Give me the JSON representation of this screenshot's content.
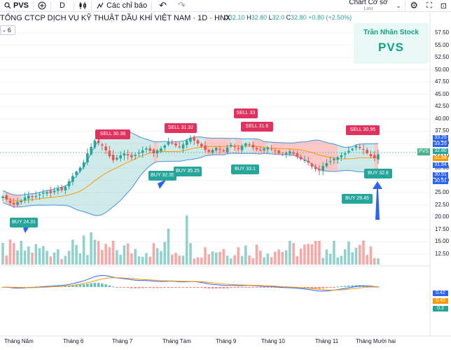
{
  "toolbar": {
    "symbol": "PVS",
    "interval": "D",
    "indicators_label": "Các chỉ báo",
    "chart_type_label": "Chart Cơ sở",
    "save_label": "Lưu"
  },
  "header": {
    "title": "TỔNG CTCP DỊCH VỤ KỸ THUẬT DẦU KHÍ VIỆT NAM · 1D · HNX",
    "open_label": "O",
    "open": "32.10",
    "high_label": "H",
    "high": "32.80",
    "low_label": "L",
    "low": "32.0",
    "close_label": "C",
    "close": "32.80",
    "change": "+0.80 (+2.50%)",
    "volume_count": "6"
  },
  "watermark": {
    "author": "Trần Nhân Stock",
    "symbol": "PVS"
  },
  "colors": {
    "up": "#26a69a",
    "down": "#ef5350",
    "sell": "#e0315f",
    "buy": "#26a69a",
    "band": "#4a90d9"
  },
  "chart_data": {
    "type": "candlestick",
    "title": "TỔNG CTCP DỊCH VỤ KỸ THUẬT DẦU KHÍ VIỆT NAM · 1D · HNX",
    "x_labels": [
      "Tháng Năm",
      "Tháng 6",
      "Tháng 7",
      "Tháng Tám",
      "Tháng 9",
      "Tháng 10",
      "Tháng 11",
      "Tháng Mười hai"
    ],
    "y_ticks": [
      "57.50",
      "55.00",
      "52.50",
      "50.00",
      "47.50",
      "45.00",
      "42.50",
      "40.00",
      "37.50",
      "35.00",
      "32.50",
      "30.00",
      "27.50",
      "25.00",
      "22.50",
      "20.00",
      "17.50",
      "15.00",
      "12.50"
    ],
    "ylim": [
      11.5,
      58.5
    ],
    "close": [
      24.2,
      23.6,
      22.9,
      22.6,
      23.1,
      23.4,
      24.0,
      24.4,
      24.1,
      24.3,
      24.6,
      25.0,
      25.1,
      24.9,
      25.4,
      25.8,
      25.5,
      26.2,
      27.3,
      28.4,
      29.3,
      30.1,
      31.2,
      33.0,
      34.3,
      35.6,
      35.1,
      34.6,
      33.6,
      32.4,
      31.6,
      32.1,
      32.6,
      33.0,
      32.6,
      32.2,
      32.7,
      33.1,
      33.6,
      34.0,
      33.5,
      33.0,
      33.6,
      34.0,
      34.6,
      35.3,
      35.0,
      34.6,
      34.2,
      34.8,
      35.6,
      36.2,
      35.6,
      35.0,
      34.4,
      33.7,
      33.3,
      33.7,
      34.1,
      33.8,
      33.4,
      34.2,
      34.7,
      34.3,
      33.9,
      34.5,
      35.0,
      34.8,
      34.2,
      33.8,
      33.6,
      34.0,
      34.2,
      33.8,
      33.5,
      33.0,
      32.7,
      33.1,
      33.4,
      32.9,
      32.3,
      31.8,
      31.6,
      31.1,
      30.3,
      29.8,
      29.5,
      30.4,
      31.0,
      31.4,
      31.9,
      32.2,
      32.6,
      33.0,
      33.5,
      33.9,
      34.5,
      34.1,
      33.7,
      33.0,
      32.4,
      32.0,
      32.8
    ],
    "annotations": [
      {
        "label": "BUY 24.31",
        "kind": "buy"
      },
      {
        "label": "SELL 30.38",
        "kind": "sell"
      },
      {
        "label": "BUY 32.35",
        "kind": "buy"
      },
      {
        "label": "SELL 31.32",
        "kind": "sell"
      },
      {
        "label": "BUY 35.25",
        "kind": "buy"
      },
      {
        "label": "SELL 33",
        "kind": "sell"
      },
      {
        "label": "SELL 31.6",
        "kind": "sell"
      },
      {
        "label": "BUY 33.1",
        "kind": "buy"
      },
      {
        "label": "BUY 29.45",
        "kind": "buy"
      },
      {
        "label": "SELL 30.95",
        "kind": "sell"
      },
      {
        "label": "BUY 32.8",
        "kind": "buy"
      }
    ],
    "price_tags": [
      {
        "value": "33.25",
        "color": "#2962ff"
      },
      {
        "value": "33.25",
        "color": "#2962ff"
      },
      {
        "value": "32.80",
        "color": "#26a69a"
      },
      {
        "value": "31.88",
        "color": "#ff9800"
      },
      {
        "value": "31.84",
        "color": "#2962ff"
      },
      {
        "value": "30.51",
        "color": "#2962ff"
      },
      {
        "value": "30.51",
        "color": "#2962ff"
      }
    ],
    "macd_tags": [
      {
        "value": "0.42",
        "color": "#2962ff"
      },
      {
        "value": "0.40",
        "color": "#ff9800"
      },
      {
        "value": "0.2",
        "color": "#26a69a"
      }
    ],
    "pvs_tag": "PVS"
  }
}
